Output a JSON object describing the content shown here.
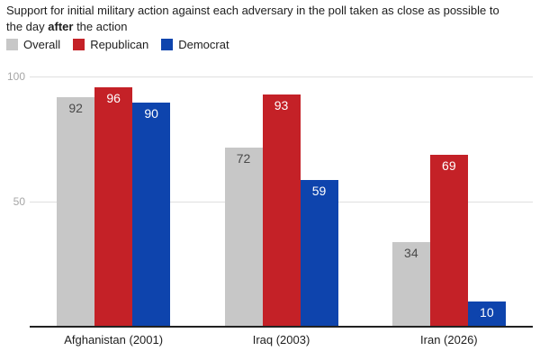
{
  "title": {
    "line1": "Support for initial military action against each adversary in the poll taken as close as possible to",
    "line2_prefix": "the day ",
    "line2_bold": "after",
    "line2_suffix": " the action"
  },
  "colors": {
    "grid": "#e0e0e0",
    "baseline": "#212121",
    "tick_label": "#a6a6a6",
    "axis_text": "#1d1d1d"
  },
  "chart_data": {
    "type": "bar",
    "title": "Support for initial military action against each adversary in the poll taken as close as possible to the day after the action",
    "categories": [
      "Afghanistan (2001)",
      "Iraq (2003)",
      "Iran (2026)"
    ],
    "series": [
      {
        "name": "Overall",
        "color": "#c7c7c7",
        "label_color": "#4a4a4a",
        "values": [
          92,
          72,
          34
        ]
      },
      {
        "name": "Republican",
        "color": "#c42127",
        "label_color": "#ffffff",
        "values": [
          96,
          93,
          69
        ]
      },
      {
        "name": "Democrat",
        "color": "#0e44ad",
        "label_color": "#ffffff",
        "values": [
          90,
          59,
          10
        ]
      }
    ],
    "ylim": [
      0,
      100
    ],
    "yticks": [
      50,
      100
    ],
    "grid": true,
    "legend_position": "top-left",
    "value_labels": "inside-top"
  }
}
